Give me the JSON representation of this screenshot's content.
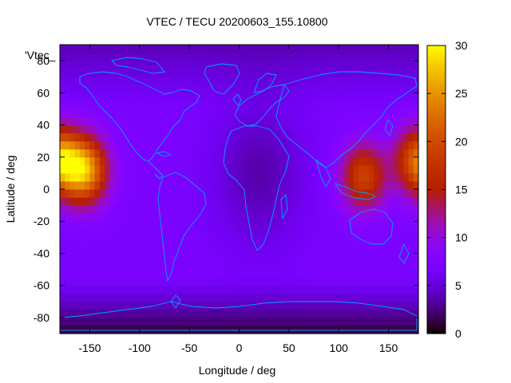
{
  "chart_data": {
    "type": "heatmap",
    "title": "VTEC / TECU 20200603_155.10800",
    "xlabel": "Longitude / deg",
    "ylabel": "Latitude / deg",
    "key_label": "'Vtec_",
    "xlim": [
      -180,
      180
    ],
    "ylim": [
      -90,
      90
    ],
    "x_ticks": [
      -150,
      -100,
      -50,
      0,
      50,
      100,
      150
    ],
    "y_ticks": [
      -80,
      -60,
      -40,
      -20,
      0,
      20,
      40,
      60,
      80
    ],
    "colorbar": {
      "min": 0,
      "max": 30,
      "ticks": [
        0,
        5,
        10,
        15,
        20,
        25,
        30
      ]
    },
    "grid": false,
    "peaks": [
      {
        "lon": -155,
        "lat": 12,
        "value": 26
      },
      {
        "lon": 125,
        "lat": 8,
        "value": 19
      },
      {
        "lon": 178,
        "lat": 18,
        "value": 20
      }
    ],
    "background_value": 7,
    "coastline_color": "#00a0ff"
  }
}
